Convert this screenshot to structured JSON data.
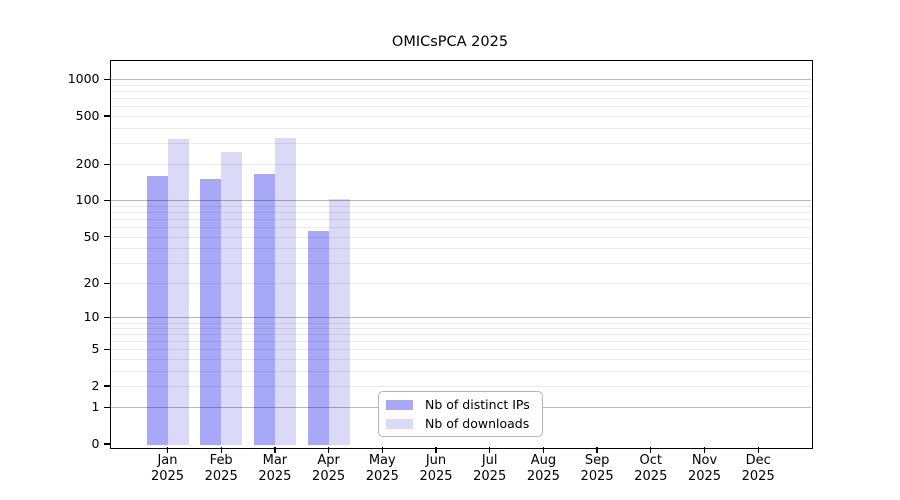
{
  "title": "OMICsPCA 2025",
  "chart_data": {
    "type": "bar",
    "title": "OMICsPCA 2025",
    "categories": [
      "Jan 2025",
      "Feb 2025",
      "Mar 2025",
      "Apr 2025",
      "May 2025",
      "Jun 2025",
      "Jul 2025",
      "Aug 2025",
      "Sep 2025",
      "Oct 2025",
      "Nov 2025",
      "Dec 2025"
    ],
    "series": [
      {
        "name": "Nb of distinct IPs",
        "color": "#a8a8f8",
        "values": [
          160,
          150,
          166,
          56,
          null,
          null,
          null,
          null,
          null,
          null,
          null,
          null
        ]
      },
      {
        "name": "Nb of downloads",
        "color": "#dadaf8",
        "values": [
          320,
          250,
          326,
          102,
          null,
          null,
          null,
          null,
          null,
          null,
          null,
          null
        ]
      }
    ],
    "xlabel": "",
    "ylabel": "",
    "y_ticks": [
      0,
      1,
      2,
      5,
      10,
      20,
      50,
      100,
      200,
      500,
      1000
    ],
    "y_scale": "log10(value+1)",
    "ylim": [
      0,
      1300
    ],
    "grid": "horizontal; dark rules at 1,10,100,1000; faint rules at 2-9 of each decade",
    "legend_position": "inside-bottom-center",
    "colors": {
      "bar_distinct_ips": "#a8a8f8",
      "bar_downloads": "#dadaf8",
      "grid_major": "#b7b7b7",
      "grid_minor": "#ebebeb",
      "axis_box": "#000000",
      "background": "#ffffff"
    }
  }
}
